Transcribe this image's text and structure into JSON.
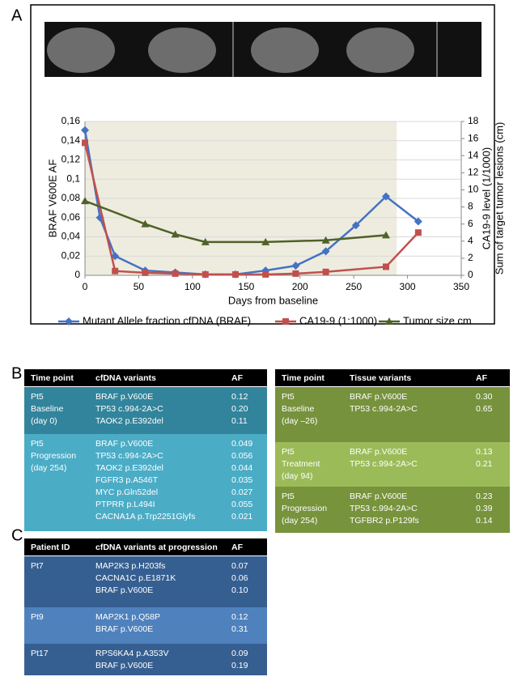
{
  "panel_labels": [
    "A",
    "B",
    "C"
  ],
  "chart_data": {
    "type": "line",
    "x_label": "Days from baseline",
    "y_label": "BRAF V600E AF",
    "y2_label": [
      "CA19-9 level (1/1000)",
      "Sum of target tumor lesions (cm)"
    ],
    "xlim": [
      0,
      350
    ],
    "xticks": [
      0,
      50,
      100,
      150,
      200,
      250,
      300,
      350
    ],
    "ylim": [
      0,
      0.16
    ],
    "yticks": [
      0,
      {
        "value": 0.02,
        "label": "0,02"
      },
      {
        "value": 0.04,
        "label": "0,04"
      },
      {
        "value": 0.06,
        "label": "0,06"
      },
      {
        "value": 0.08,
        "label": "0,08"
      },
      {
        "value": 0.1,
        "label": "0,1"
      },
      {
        "value": 0.12,
        "label": "0,12"
      },
      {
        "value": 0.14,
        "label": "0,14"
      },
      {
        "value": 0.16,
        "label": "0,16"
      }
    ],
    "y2lim": [
      0,
      18
    ],
    "y2ticks": [
      0,
      2,
      4,
      6,
      8,
      10,
      12,
      14,
      16,
      18
    ],
    "shade_xlim": [
      0,
      290
    ],
    "series": [
      {
        "name": "Mutant Allele fraction cfDNA (BRAF)",
        "color": "#4472c4",
        "marker": "diamond",
        "x": [
          0,
          14,
          28,
          56,
          84,
          112,
          140,
          168,
          196,
          224,
          252,
          280,
          310
        ],
        "values": [
          0.151,
          0.06,
          0.02,
          0.005,
          0.003,
          0.001,
          0.001,
          0.005,
          0.01,
          0.025,
          0.052,
          0.082,
          0.056
        ]
      },
      {
        "name": "CA19-9 (1:1000)",
        "color": "#c0504d",
        "marker": "square",
        "axis": "y2",
        "x": [
          0,
          28,
          56,
          84,
          112,
          140,
          168,
          196,
          224,
          280,
          310
        ],
        "values": [
          15.5,
          0.5,
          0.3,
          0.2,
          0.1,
          0.1,
          0.1,
          0.2,
          0.4,
          1.0,
          5.0
        ]
      },
      {
        "name": "Tumor size cm",
        "color": "#4f6228",
        "marker": "triangle",
        "axis": "y2",
        "x": [
          0,
          56,
          84,
          112,
          168,
          224,
          280
        ],
        "values": [
          8.7,
          6.0,
          4.8,
          3.9,
          3.9,
          4.1,
          4.7
        ]
      }
    ]
  },
  "table_b_cfdna": {
    "header": [
      "Time point",
      "cfDNA variants",
      "AF"
    ],
    "rows": [
      {
        "color": "#31849b",
        "cells": [
          [
            "Pt5",
            "Baseline",
            "(day 0)"
          ],
          [
            "BRAF p.V600E",
            "TP53 c.994-2A>C",
            "TAOK2 p.E392del"
          ],
          [
            "0.12",
            "0.20",
            "0.11"
          ]
        ]
      },
      {
        "color": "#4bacc6",
        "cells": [
          [
            "Pt5",
            "Progression",
            "(day 254)"
          ],
          [
            "BRAF p.V600E",
            "TP53 c.994-2A>C",
            "TAOK2 p.E392del",
            "FGFR3 p.A546T",
            "MYC p.Gln52del",
            "PTPRR p.L494I",
            "CACNA1A  p.Trp2251Glyfs"
          ],
          [
            "0.049",
            "0.056",
            "0.044",
            "0.035",
            "0.027",
            "0.055",
            "0.021"
          ]
        ]
      }
    ]
  },
  "table_b_tissue": {
    "header": [
      "Time point",
      "Tissue variants",
      "AF"
    ],
    "rows": [
      {
        "color": "#76923c",
        "cells": [
          [
            "Pt5",
            "Baseline",
            "(day –26)"
          ],
          [
            "BRAF p.V600E",
            "TP53 c.994-2A>C"
          ],
          [
            "0.30",
            "0.65"
          ]
        ]
      },
      {
        "color": "#9bbb59",
        "cells": [
          [
            "Pt5",
            "Treatment",
            "(day 94)"
          ],
          [
            "BRAF p.V600E",
            "TP53 c.994-2A>C"
          ],
          [
            "0.13",
            "0.21"
          ]
        ]
      },
      {
        "color": "#77933c",
        "cells": [
          [
            "Pt5",
            "Progression",
            "(day 254)"
          ],
          [
            "BRAF p.V600E",
            "TP53 c.994-2A>C",
            "TGFBR2 p.P129fs"
          ],
          [
            "0.23",
            "0.39",
            "0.14"
          ]
        ]
      }
    ]
  },
  "table_c": {
    "header": [
      "Patient ID",
      "cfDNA variants at progression",
      "AF"
    ],
    "rows": [
      {
        "color": "#365f91",
        "cells": [
          [
            "Pt7"
          ],
          [
            "MAP2K3 p.H203fs",
            "CACNA1C p.E1871K",
            "BRAF p.V600E"
          ],
          [
            "0.07",
            "0.06",
            "0.10"
          ]
        ]
      },
      {
        "color": "#4f81bd",
        "cells": [
          [
            "Pt9"
          ],
          [
            "MAP2K1 p.Q58P",
            "BRAF p.V600E"
          ],
          [
            "0.12",
            "0.31"
          ]
        ]
      },
      {
        "color": "#365f91",
        "cells": [
          [
            "Pt17"
          ],
          [
            "RPS6KA4 p.A353V",
            "BRAF p.V600E"
          ],
          [
            "0.09",
            "0.19"
          ]
        ]
      }
    ]
  }
}
